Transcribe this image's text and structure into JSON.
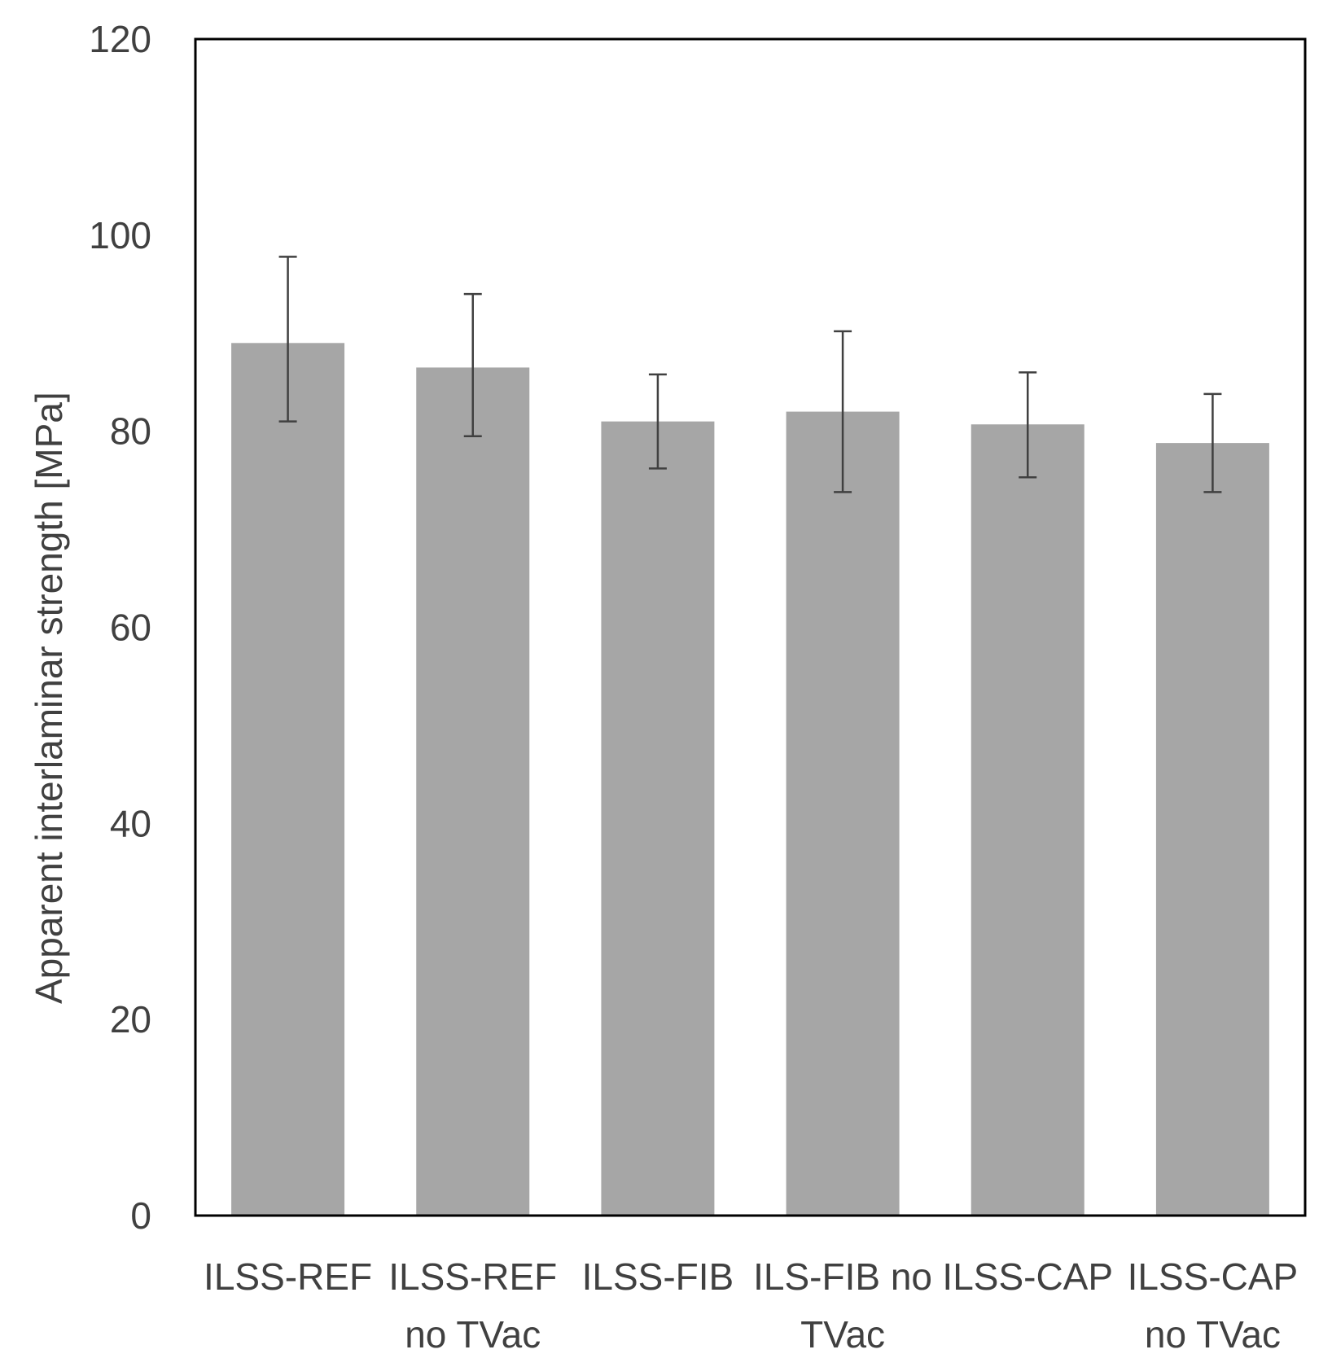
{
  "chart_data": {
    "type": "bar",
    "title": "",
    "xlabel": "",
    "ylabel": "Apparent interlaminar strength [MPa]",
    "ylim": [
      0,
      120
    ],
    "yticks": [
      0,
      20,
      40,
      60,
      80,
      100,
      120
    ],
    "grid": false,
    "legend": "none",
    "bar_color": "#a6a6a6",
    "error_bar_color": "#404040",
    "frame_color": "#000000",
    "categories": [
      [
        "ILSS-REF"
      ],
      [
        "ILSS-REF",
        "no TVac"
      ],
      [
        "ILSS-FIB"
      ],
      [
        "ILS-FIB no",
        "TVac"
      ],
      [
        "ILSS-CAP"
      ],
      [
        "ILSS-CAP",
        "no TVac"
      ]
    ],
    "values": [
      89.0,
      86.5,
      81.0,
      82.0,
      80.7,
      78.8
    ],
    "error_low": [
      81.0,
      79.5,
      76.2,
      73.8,
      75.3,
      73.8
    ],
    "error_high": [
      97.8,
      94.0,
      85.8,
      90.2,
      86.0,
      83.8
    ]
  }
}
